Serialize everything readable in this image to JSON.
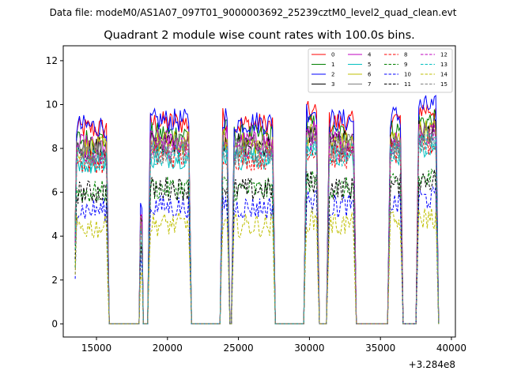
{
  "header": {
    "data_file": "Data file: modeM0/AS1A07_097T01_9000003692_25239cztM0_level2_quad_clean.evt"
  },
  "chart_data": {
    "type": "line",
    "title": "Quadrant 2 module wise count rates with 100.0s bins.",
    "xlabel": "",
    "ylabel": "",
    "x_offset_text": "+3.284e8",
    "xlim": [
      12660,
      40280
    ],
    "ylim": [
      -0.6,
      12.68
    ],
    "xticks": [
      15000,
      20000,
      25000,
      30000,
      35000,
      40000
    ],
    "yticks": [
      0,
      2,
      4,
      6,
      8,
      10,
      12
    ],
    "bin_size": 100,
    "x_start": 13500,
    "x_end": 39100,
    "on_segments": [
      {
        "from": 13500,
        "to": 15800,
        "scale": 1.0
      },
      {
        "from": 18100,
        "to": 18200,
        "scale": 1.15
      },
      {
        "from": 18700,
        "to": 21600,
        "scale": 1.03
      },
      {
        "from": 23800,
        "to": 24300,
        "scale": 1.05
      },
      {
        "from": 24600,
        "to": 27500,
        "scale": 1.02
      },
      {
        "from": 29700,
        "to": 30600,
        "scale": 1.08
      },
      {
        "from": 31300,
        "to": 33200,
        "scale": 1.03
      },
      {
        "from": 35600,
        "to": 36500,
        "scale": 1.05
      },
      {
        "from": 37600,
        "to": 39000,
        "scale": 1.1
      }
    ],
    "off_level": 0,
    "legend": {
      "placement": "top-right",
      "columns": 4
    },
    "series": [
      {
        "name": "0",
        "color": "#ff0000",
        "dash": false,
        "mean": 8.9
      },
      {
        "name": "1",
        "color": "#008000",
        "dash": false,
        "mean": 8.4
      },
      {
        "name": "2",
        "color": "#0000ff",
        "dash": false,
        "mean": 9.0
      },
      {
        "name": "3",
        "color": "#000000",
        "dash": false,
        "mean": 8.0
      },
      {
        "name": "4",
        "color": "#bf00bf",
        "dash": false,
        "mean": 8.1
      },
      {
        "name": "5",
        "color": "#00bfbf",
        "dash": false,
        "mean": 7.4
      },
      {
        "name": "6",
        "color": "#bfbf00",
        "dash": false,
        "mean": 8.0
      },
      {
        "name": "7",
        "color": "#808080",
        "dash": false,
        "mean": 7.9
      },
      {
        "name": "8",
        "color": "#ff0000",
        "dash": true,
        "mean": 7.4
      },
      {
        "name": "9",
        "color": "#008000",
        "dash": true,
        "mean": 6.0
      },
      {
        "name": "10",
        "color": "#0000ff",
        "dash": true,
        "mean": 5.2
      },
      {
        "name": "11",
        "color": "#000000",
        "dash": true,
        "mean": 6.0
      },
      {
        "name": "12",
        "color": "#bf00bf",
        "dash": true,
        "mean": 7.8
      },
      {
        "name": "13",
        "color": "#00bfbf",
        "dash": true,
        "mean": 7.5
      },
      {
        "name": "14",
        "color": "#bfbf00",
        "dash": true,
        "mean": 4.4
      },
      {
        "name": "15",
        "color": "#808080",
        "dash": true,
        "mean": 7.6
      }
    ]
  }
}
